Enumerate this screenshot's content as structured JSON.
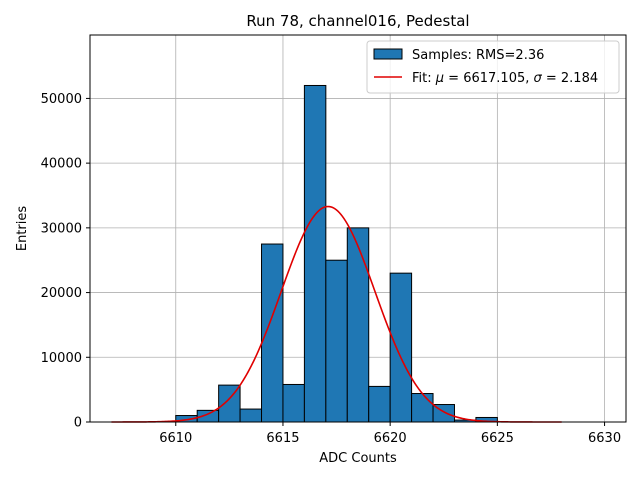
{
  "chart_data": {
    "type": "bar",
    "title": "Run 78, channel016, Pedestal",
    "xlabel": "ADC Counts",
    "ylabel": "Entries",
    "xlim": [
      6606,
      6631
    ],
    "ylim": [
      0,
      59800
    ],
    "grid": true,
    "x_ticks": [
      6610,
      6615,
      6620,
      6625,
      6630
    ],
    "y_ticks": [
      0,
      10000,
      20000,
      30000,
      40000,
      50000
    ],
    "bin_width": 1,
    "bins": [
      {
        "start": 6610,
        "count": 1000
      },
      {
        "start": 6611,
        "count": 1800
      },
      {
        "start": 6612,
        "count": 5700
      },
      {
        "start": 6613,
        "count": 2000
      },
      {
        "start": 6614,
        "count": 27500
      },
      {
        "start": 6615,
        "count": 5800
      },
      {
        "start": 6616,
        "count": 52000
      },
      {
        "start": 6617,
        "count": 25000
      },
      {
        "start": 6618,
        "count": 30000
      },
      {
        "start": 6619,
        "count": 5500
      },
      {
        "start": 6620,
        "count": 23000
      },
      {
        "start": 6621,
        "count": 4400
      },
      {
        "start": 6622,
        "count": 2700
      },
      {
        "start": 6623,
        "count": 300
      },
      {
        "start": 6624,
        "count": 700
      }
    ],
    "fit": {
      "mu": 6617.105,
      "sigma": 2.184,
      "amplitude": 33300,
      "x_range": [
        6607,
        6628
      ]
    },
    "legend": {
      "position": "top-right",
      "entries": [
        {
          "label": "Samples: RMS=2.36",
          "kind": "patch"
        },
        {
          "label_prefix": "Fit: ",
          "mu_symbol": "μ",
          "mu_text": " = 6617.105, ",
          "sigma_symbol": "σ",
          "sigma_text": " = 2.184",
          "kind": "line"
        }
      ]
    },
    "colors": {
      "bar_fill": "#1f77b4",
      "bar_edge": "#000000",
      "fit_line": "#e00000",
      "grid": "#b0b0b0"
    }
  }
}
